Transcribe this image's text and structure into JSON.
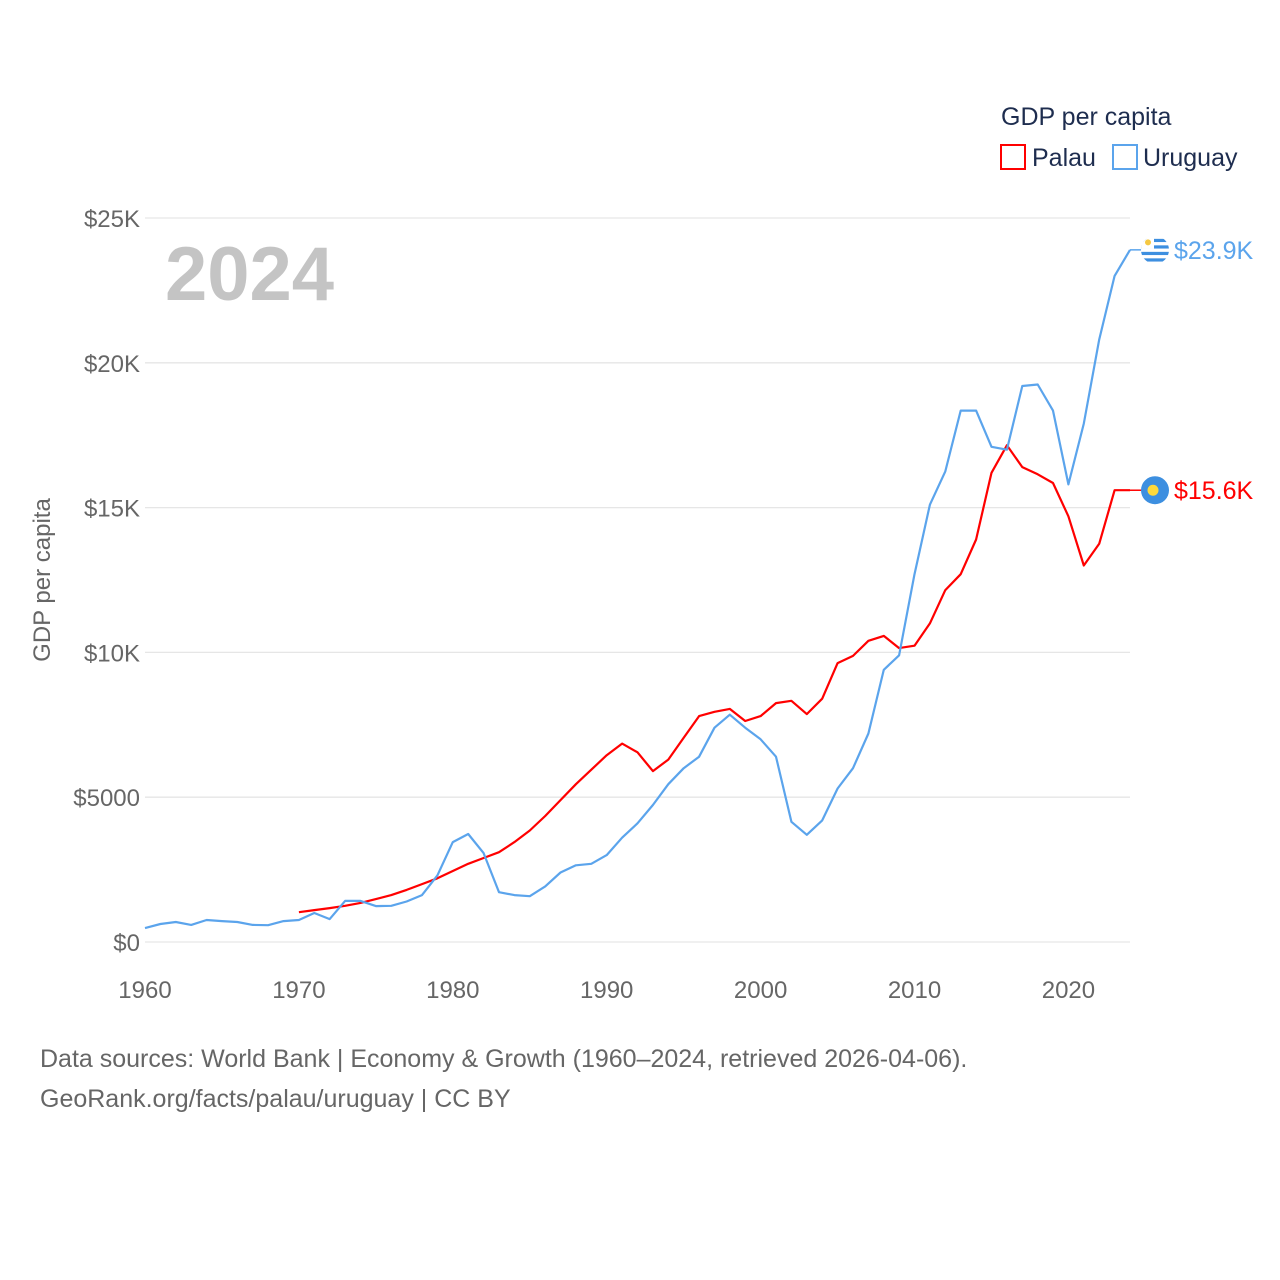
{
  "chart_data": {
    "type": "line",
    "title": "GDP per capita",
    "xlabel": "",
    "ylabel": "GDP per capita",
    "year_label": "2024",
    "xlim": [
      1960,
      2024
    ],
    "ylim": [
      0,
      25000
    ],
    "grid": true,
    "legend_placement": "top-right",
    "x_ticks": [
      1960,
      1970,
      1980,
      1990,
      2000,
      2010,
      2020
    ],
    "y_ticks": [
      {
        "value": 0,
        "label": "$0"
      },
      {
        "value": 5000,
        "label": "$5000"
      },
      {
        "value": 10000,
        "label": "$10K"
      },
      {
        "value": 15000,
        "label": "$15K"
      },
      {
        "value": 20000,
        "label": "$20K"
      },
      {
        "value": 25000,
        "label": "$25K"
      }
    ],
    "series": [
      {
        "name": "Palau",
        "color": "#ff0000",
        "end_label": "$15.6K",
        "start_year": 1970,
        "values": [
          1030,
          1100,
          1170,
          1250,
          1350,
          1480,
          1620,
          1800,
          2000,
          2200,
          2450,
          2700,
          2900,
          3100,
          3450,
          3850,
          4350,
          4900,
          5450,
          5950,
          6450,
          6850,
          6550,
          5900,
          6300,
          7050,
          7800,
          7950,
          8050,
          7630,
          7800,
          8250,
          8330,
          7870,
          8400,
          9630,
          9880,
          10400,
          10570,
          10150,
          10230,
          11000,
          12150,
          12700,
          13900,
          16200,
          17150,
          16400,
          16150,
          15850,
          14700,
          13000,
          13750,
          15600,
          15600
        ]
      },
      {
        "name": "Uruguay",
        "color": "#5ba4ec",
        "end_label": "$23.9K",
        "start_year": 1960,
        "values": [
          480,
          620,
          690,
          590,
          760,
          720,
          690,
          590,
          580,
          720,
          760,
          1000,
          790,
          1420,
          1420,
          1240,
          1250,
          1400,
          1620,
          2300,
          3450,
          3730,
          3070,
          1720,
          1620,
          1580,
          1920,
          2400,
          2650,
          2700,
          3000,
          3600,
          4100,
          4730,
          5450,
          6000,
          6400,
          7400,
          7850,
          7400,
          7000,
          6400,
          4150,
          3700,
          4200,
          5300,
          6000,
          7200,
          9400,
          9900,
          12700,
          15100,
          16250,
          18350,
          18350,
          17100,
          17000,
          19200,
          19250,
          18350,
          15800,
          17900,
          20800,
          23000,
          23900
        ]
      }
    ]
  },
  "footer": {
    "line1": "Data sources: World Bank | Economy & Growth (1960–2024, retrieved 2026-04-06).",
    "line2": "GeoRank.org/facts/palau/uruguay | CC BY"
  }
}
